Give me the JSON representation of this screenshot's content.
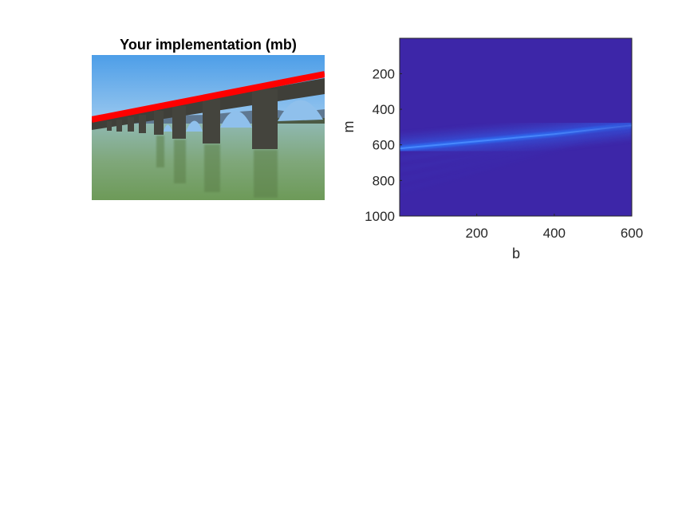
{
  "colors": {
    "background": "#ffffff",
    "line_overlay": "#ff0000",
    "heatmap_base": "#3d26a8",
    "heatmap_ridge": "#2a5cff",
    "axis": "#262626",
    "sky": "#5aa8e8",
    "water": "#79a98e",
    "stone": "#3e3e38"
  },
  "chart_data": [
    {
      "type": "image",
      "title": "Your implementation (mb)",
      "overlay": {
        "type": "line",
        "color": "#ff0000",
        "description_visible": false
      }
    },
    {
      "type": "heatmap",
      "title": "",
      "xlabel": "b",
      "ylabel": "m",
      "xlim": [
        1,
        600
      ],
      "ylim": [
        1,
        1000
      ],
      "y_reversed": true,
      "xticks": [
        200,
        400,
        600
      ],
      "yticks": [
        200,
        400,
        600,
        800,
        1000
      ],
      "ridge": {
        "b": [
          0,
          100,
          200,
          300,
          400,
          500,
          600
        ],
        "m": [
          620,
          600,
          580,
          560,
          540,
          515,
          490
        ]
      },
      "grid": false,
      "colormap": "parula"
    }
  ]
}
